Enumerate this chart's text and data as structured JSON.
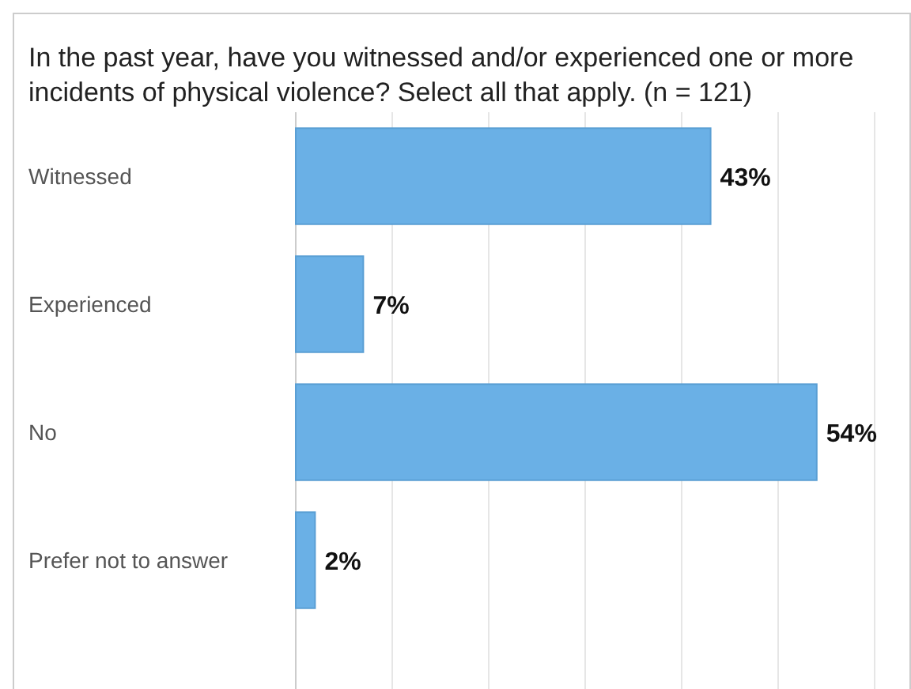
{
  "chart_data": {
    "type": "bar",
    "orientation": "horizontal",
    "title": "In the past year, have you witnessed and/or experienced one or more incidents of physical violence? Select all that apply. (n = 121)",
    "categories": [
      "Witnessed",
      "Experienced",
      "No",
      "Prefer not to answer"
    ],
    "values": [
      43,
      7,
      54,
      2
    ],
    "value_labels": [
      "43%",
      "7%",
      "54%",
      "2%"
    ],
    "color": "#6ab0e6",
    "xlim": [
      0,
      60
    ],
    "xticks": [
      {
        "value": 0,
        "label": null
      },
      {
        "value": 10,
        "label": null
      },
      {
        "value": 20,
        "label": null
      },
      {
        "value": 30,
        "label": null
      },
      {
        "value": 40,
        "label": null
      },
      {
        "value": 50,
        "label": null
      },
      {
        "value": 60,
        "label": null
      }
    ],
    "tick_labels": "y",
    "grid": "x"
  }
}
